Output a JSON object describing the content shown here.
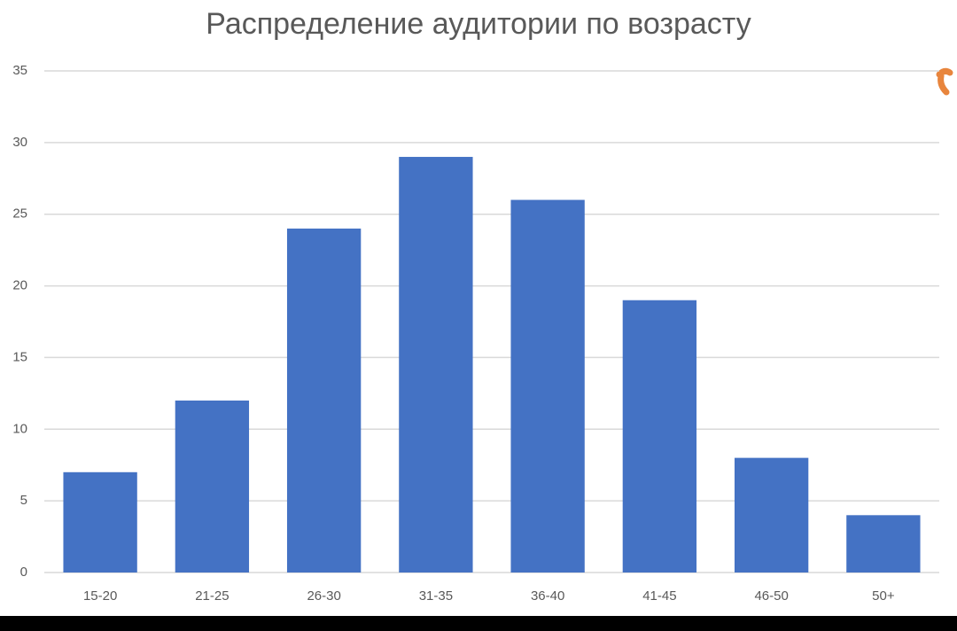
{
  "chart_data": {
    "type": "bar",
    "title": "Распределение аудитории по возрасту",
    "categories": [
      "15-20",
      "21-25",
      "26-30",
      "31-35",
      "36-40",
      "41-45",
      "46-50",
      "50+"
    ],
    "values": [
      7,
      12,
      24,
      29,
      26,
      19,
      8,
      4
    ],
    "color": "#4472c4",
    "ylim": [
      0,
      35
    ],
    "yticks": [
      0,
      5,
      10,
      15,
      20,
      25,
      30,
      35
    ],
    "grid": true
  }
}
